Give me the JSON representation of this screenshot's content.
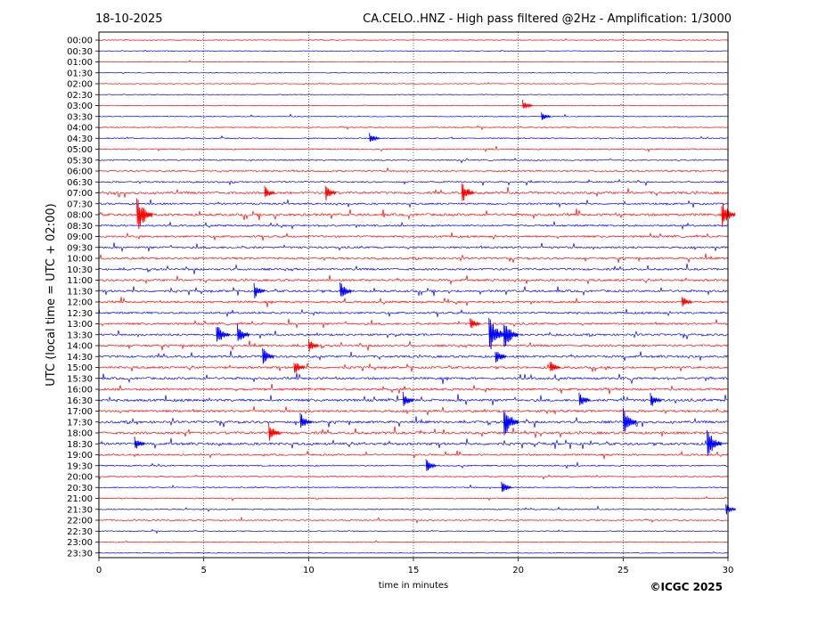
{
  "header": {
    "date": "18-10-2025",
    "title": "CA.CELO..HNZ - High pass filtered @2Hz - Amplification: 1/3000"
  },
  "footer": {
    "copyright": "©ICGC 2025"
  },
  "colors": {
    "trace_a": "#ff0000",
    "trace_b": "#0000ff",
    "axes": "#000000",
    "grid": "#000000"
  },
  "chart_data": {
    "type": "line",
    "subtype": "helicorder",
    "title": "CA.CELO..HNZ - High pass filtered @2Hz - Amplification: 1/3000",
    "xlabel": "time in minutes",
    "ylabel": "UTC (local time = UTC + 02:00)",
    "xlim": [
      0,
      30
    ],
    "x_ticks": [
      0,
      5,
      10,
      15,
      20,
      25,
      30
    ],
    "x_tick_labels": [
      "0",
      "5",
      "10",
      "15",
      "20",
      "25",
      "30"
    ],
    "grid": "vertical dotted lines at each x tick",
    "row_colors": [
      "red",
      "blue"
    ],
    "rows": [
      "00:00",
      "00:30",
      "01:00",
      "01:30",
      "02:00",
      "02:30",
      "03:00",
      "03:30",
      "04:00",
      "04:30",
      "05:00",
      "05:30",
      "06:00",
      "06:30",
      "07:00",
      "07:30",
      "08:00",
      "08:30",
      "09:00",
      "09:30",
      "10:00",
      "10:30",
      "11:00",
      "11:30",
      "12:00",
      "12:30",
      "13:00",
      "13:30",
      "14:00",
      "14:30",
      "15:00",
      "15:30",
      "16:00",
      "16:30",
      "17:00",
      "17:30",
      "18:00",
      "18:30",
      "19:00",
      "19:30",
      "20:00",
      "20:30",
      "21:00",
      "21:30",
      "22:00",
      "22:30",
      "23:00",
      "23:30"
    ],
    "activity_level": [
      0.05,
      0.08,
      0.04,
      0.05,
      0.05,
      0.07,
      0.1,
      0.1,
      0.15,
      0.2,
      0.25,
      0.25,
      0.3,
      0.35,
      0.6,
      0.45,
      0.7,
      0.45,
      0.5,
      0.5,
      0.5,
      0.55,
      0.55,
      0.6,
      0.55,
      0.5,
      0.5,
      0.55,
      0.55,
      0.6,
      0.55,
      0.6,
      0.65,
      0.7,
      0.6,
      0.65,
      0.7,
      0.7,
      0.4,
      0.3,
      0.2,
      0.25,
      0.2,
      0.2,
      0.2,
      0.15,
      0.12,
      0.05
    ],
    "events": [
      {
        "row": "03:00",
        "minute": 20.2,
        "strength": 0.5
      },
      {
        "row": "03:30",
        "minute": 21.1,
        "strength": 0.4
      },
      {
        "row": "04:30",
        "minute": 12.9,
        "strength": 0.5
      },
      {
        "row": "07:00",
        "minute": 17.3,
        "strength": 0.9
      },
      {
        "row": "07:00",
        "minute": 10.8,
        "strength": 0.7
      },
      {
        "row": "07:00",
        "minute": 7.9,
        "strength": 0.6
      },
      {
        "row": "08:00",
        "minute": 1.8,
        "strength": 1.6
      },
      {
        "row": "08:00",
        "minute": 29.7,
        "strength": 1.2
      },
      {
        "row": "11:30",
        "minute": 7.4,
        "strength": 0.7
      },
      {
        "row": "11:30",
        "minute": 11.5,
        "strength": 0.8
      },
      {
        "row": "12:00",
        "minute": 27.8,
        "strength": 0.6
      },
      {
        "row": "13:00",
        "minute": 17.7,
        "strength": 0.6
      },
      {
        "row": "13:30",
        "minute": 5.6,
        "strength": 1.0
      },
      {
        "row": "13:30",
        "minute": 6.6,
        "strength": 0.9
      },
      {
        "row": "13:30",
        "minute": 18.6,
        "strength": 1.6
      },
      {
        "row": "13:30",
        "minute": 19.3,
        "strength": 1.3
      },
      {
        "row": "14:00",
        "minute": 10.0,
        "strength": 0.6
      },
      {
        "row": "14:30",
        "minute": 7.8,
        "strength": 0.8
      },
      {
        "row": "14:30",
        "minute": 18.9,
        "strength": 0.7
      },
      {
        "row": "15:00",
        "minute": 9.3,
        "strength": 0.7
      },
      {
        "row": "15:00",
        "minute": 21.5,
        "strength": 0.6
      },
      {
        "row": "16:30",
        "minute": 14.5,
        "strength": 0.7
      },
      {
        "row": "16:30",
        "minute": 22.9,
        "strength": 0.7
      },
      {
        "row": "16:30",
        "minute": 26.3,
        "strength": 0.7
      },
      {
        "row": "17:30",
        "minute": 9.6,
        "strength": 0.8
      },
      {
        "row": "17:30",
        "minute": 19.3,
        "strength": 1.4
      },
      {
        "row": "17:30",
        "minute": 25.0,
        "strength": 1.2
      },
      {
        "row": "18:00",
        "minute": 8.1,
        "strength": 0.8
      },
      {
        "row": "18:30",
        "minute": 1.7,
        "strength": 0.6
      },
      {
        "row": "18:30",
        "minute": 29.0,
        "strength": 1.3
      },
      {
        "row": "19:30",
        "minute": 15.6,
        "strength": 0.6
      },
      {
        "row": "20:30",
        "minute": 19.2,
        "strength": 0.6
      },
      {
        "row": "21:30",
        "minute": 29.9,
        "strength": 0.5
      }
    ]
  }
}
